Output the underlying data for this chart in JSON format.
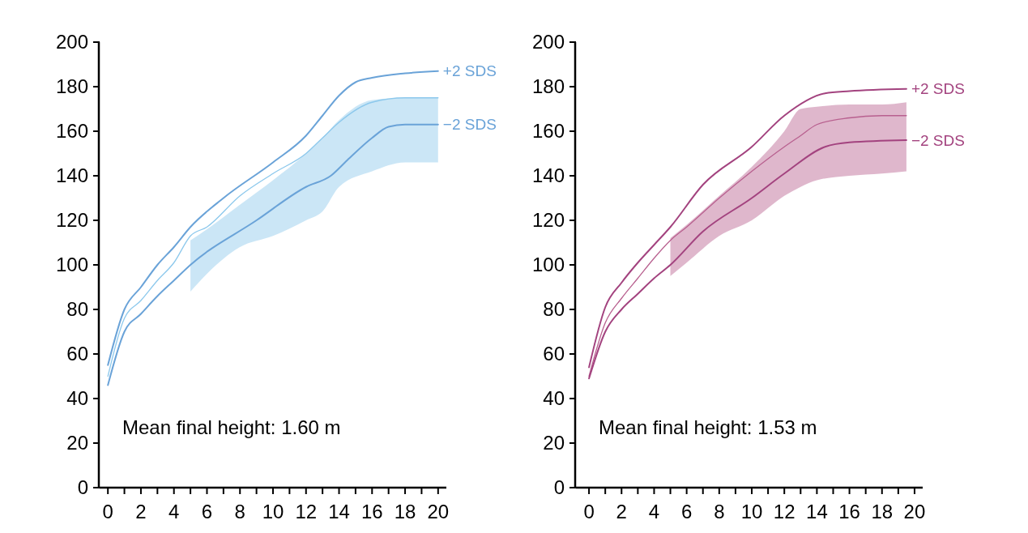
{
  "chart_data": [
    {
      "type": "line",
      "annotations": [
        "Mean final height: 1.60 m"
      ],
      "xlim": [
        -0.5,
        20.5
      ],
      "ylim": [
        0,
        200
      ],
      "xticks": [
        0,
        {
          "value": 1,
          "label": null
        },
        2,
        {
          "value": 3,
          "label": null
        },
        4,
        {
          "value": 5,
          "label": null
        },
        6,
        {
          "value": 7,
          "label": null
        },
        8,
        {
          "value": 9,
          "label": null
        },
        10,
        {
          "value": 11,
          "label": null
        },
        12,
        {
          "value": 13,
          "label": null
        },
        14,
        {
          "value": 15,
          "label": null
        },
        16,
        {
          "value": 17,
          "label": null
        },
        18,
        {
          "value": 19,
          "label": null
        },
        20
      ],
      "yticks": [
        0,
        20,
        40,
        60,
        80,
        100,
        120,
        140,
        160,
        180,
        200
      ],
      "series": [
        {
          "name": "+2 SDS",
          "color": "#6aa3d8",
          "x": [
            0,
            1,
            2,
            3,
            4,
            5,
            7,
            10,
            12,
            13,
            14,
            15,
            16,
            18,
            20
          ],
          "values": [
            55,
            80,
            90,
            100,
            108,
            117,
            130,
            146,
            158,
            167,
            176,
            182,
            184,
            186,
            187
          ]
        },
        {
          "color": "#8cc8ec",
          "x": [
            0,
            1,
            2,
            3,
            4,
            5,
            6,
            8,
            10,
            12,
            13,
            14,
            16,
            18,
            20
          ],
          "values": [
            50,
            76,
            84,
            93,
            101,
            113,
            117,
            131,
            141,
            150,
            157,
            164,
            173,
            175,
            175
          ],
          "lower": [
            null,
            null,
            null,
            null,
            null,
            88,
            96,
            108,
            113,
            120,
            124,
            135,
            142,
            146,
            146
          ],
          "upper": [
            null,
            null,
            null,
            null,
            null,
            111,
            116,
            127,
            138,
            150,
            157,
            165,
            174,
            175,
            175
          ]
        },
        {
          "name": "−2 SDS",
          "color": "#6aa3d8",
          "x": [
            0,
            1,
            2,
            3,
            4,
            5,
            9,
            12,
            13.5,
            14.5,
            16,
            17,
            18,
            20
          ],
          "values": [
            46,
            70,
            78,
            86,
            93,
            100,
            120,
            135,
            140,
            147,
            157,
            162,
            163,
            163
          ]
        }
      ]
    },
    {
      "type": "line",
      "annotations": [
        "Mean final height: 1.53 m"
      ],
      "xlim": [
        -0.8,
        20.5
      ],
      "ylim": [
        0,
        200
      ],
      "xticks": [
        0,
        {
          "value": 1,
          "label": null
        },
        2,
        {
          "value": 3,
          "label": null
        },
        4,
        {
          "value": 5,
          "label": null
        },
        6,
        {
          "value": 7,
          "label": null
        },
        8,
        {
          "value": 9,
          "label": null
        },
        10,
        {
          "value": 11,
          "label": null
        },
        12,
        {
          "value": 13,
          "label": null
        },
        14,
        {
          "value": 15,
          "label": null
        },
        16,
        {
          "value": 17,
          "label": null
        },
        18,
        {
          "value": 19,
          "label": null
        },
        20
      ],
      "yticks": [
        0,
        20,
        40,
        60,
        80,
        100,
        120,
        140,
        160,
        180,
        200
      ],
      "series": [
        {
          "name": "+2 SDS",
          "color": "#a3437f",
          "x": [
            0,
            1,
            2,
            3,
            4,
            5,
            7,
            10,
            12,
            14.5,
            16,
            19.5
          ],
          "values": [
            54,
            81,
            92,
            101,
            109,
            117,
            136,
            153,
            167,
            177,
            178,
            179
          ]
        },
        {
          "color": "#b8608f",
          "x": [
            0,
            1,
            2,
            3,
            4,
            5,
            6,
            8,
            10,
            12,
            13,
            14,
            16,
            18,
            19.5
          ],
          "values": [
            50,
            74,
            85,
            94,
            103,
            111,
            117,
            130,
            142,
            153,
            158,
            163,
            166,
            167,
            167
          ],
          "lower": [
            null,
            null,
            null,
            null,
            null,
            95,
            101,
            113,
            120,
            131,
            135,
            138,
            140,
            141,
            142
          ],
          "upper": [
            null,
            null,
            null,
            null,
            null,
            112,
            118,
            131,
            144,
            160,
            170,
            171,
            172,
            172,
            173
          ]
        },
        {
          "name": "−2 SDS",
          "color": "#a3437f",
          "x": [
            0,
            1,
            2,
            3,
            4,
            5,
            7,
            10,
            12,
            14.5,
            16,
            19.5
          ],
          "values": [
            49,
            70,
            80,
            87,
            94,
            100,
            115,
            130,
            141,
            153,
            155,
            156
          ]
        }
      ]
    }
  ]
}
